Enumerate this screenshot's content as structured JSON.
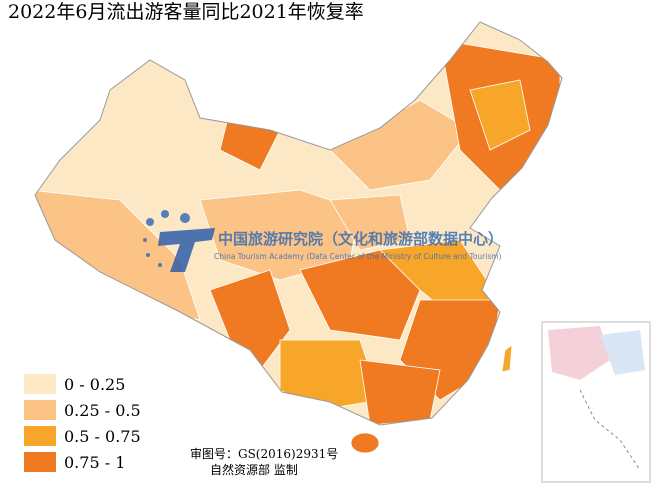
{
  "title": "2022年6月流出游客量同比2021年恢复率",
  "legend": [
    {
      "label": "0 - 0.25",
      "color": "#fde8c6"
    },
    {
      "label": "0.25 - 0.5",
      "color": "#fbc486"
    },
    {
      "label": "0.5 - 0.75",
      "color": "#f8a62a"
    },
    {
      "label": "0.75 - 1",
      "color": "#ef7a22"
    }
  ],
  "watermark": {
    "name": "中国旅游研究院（文化和旅游部数据中心）",
    "name_en": "China Tourism Academy (Data Center of the Ministry of Culture and Tourism)"
  },
  "approval": [
    "审图号：GS(2016)2931号",
    "自然资源部 监制"
  ]
}
